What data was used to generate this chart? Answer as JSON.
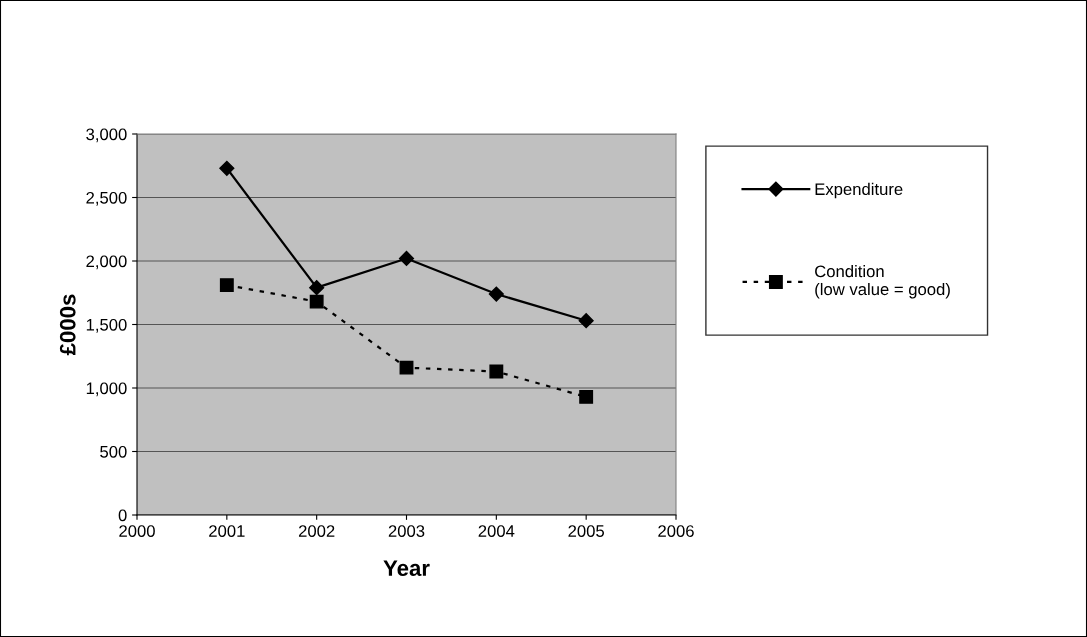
{
  "chart_data": {
    "type": "line",
    "xlabel": "Year",
    "ylabel": "£000s",
    "x": [
      2001,
      2002,
      2003,
      2004,
      2005
    ],
    "series": [
      {
        "name": "Expenditure",
        "color": "#000000",
        "values": [
          2730,
          1790,
          2020,
          1740,
          1530
        ],
        "marker": "diamond",
        "line_style": "solid"
      },
      {
        "name": "Condition\n(low value = good)",
        "color": "#000000",
        "values": [
          1810,
          1680,
          1160,
          1130,
          930
        ],
        "marker": "square",
        "line_style": "dotted"
      }
    ],
    "xlim": [
      2000,
      2006
    ],
    "xticks": [
      2000,
      2001,
      2002,
      2003,
      2004,
      2005,
      2006
    ],
    "ylim": [
      0,
      3000
    ],
    "yticks": [
      {
        "value": 0,
        "label": "0"
      },
      {
        "value": 500,
        "label": "500"
      },
      {
        "value": 1000,
        "label": "1,000"
      },
      {
        "value": 1500,
        "label": "1,500"
      },
      {
        "value": 2000,
        "label": "2,000"
      },
      {
        "value": 2500,
        "label": "2,500"
      },
      {
        "value": 3000,
        "label": "3,000"
      }
    ],
    "grid": "y",
    "legend": "right"
  }
}
